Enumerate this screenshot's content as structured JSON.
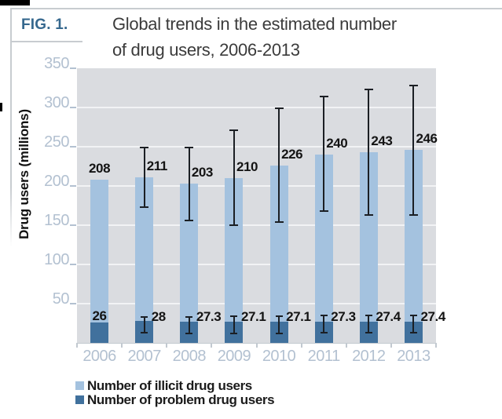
{
  "figure": {
    "label": "FIG. 1.",
    "title_line1": "Global trends in the estimated number",
    "title_line2": "of drug users, 2006-2013"
  },
  "chart_data": {
    "type": "bar",
    "title": "Global trends in the estimated number of drug users, 2006-2013",
    "xlabel": "",
    "ylabel": "Drug users (millions)",
    "ylim": [
      0,
      350
    ],
    "ytick_interval": 50,
    "grid": true,
    "legend_position": "bottom",
    "categories": [
      "2006",
      "2007",
      "2008",
      "2009",
      "2010",
      "2011",
      "2012",
      "2013"
    ],
    "series": [
      {
        "name": "Number of illicit drug users",
        "color": "#a4c2df",
        "values": [
          208,
          211,
          203,
          210,
          226,
          240,
          243,
          246
        ],
        "labels": [
          "208",
          "211",
          "203",
          "210",
          "226",
          "240",
          "243",
          "246"
        ],
        "error_low": [
          null,
          172,
          155,
          149,
          153,
          167,
          162,
          162
        ],
        "error_high": [
          null,
          250,
          250,
          272,
          300,
          315,
          324,
          329
        ]
      },
      {
        "name": "Number of problem drug users",
        "color": "#41719d",
        "values": [
          26,
          28,
          27.3,
          27.1,
          27.1,
          27.3,
          27.4,
          27.4
        ],
        "labels": [
          "26",
          "28",
          "27.3",
          "27.1",
          "27.1",
          "27.3",
          "27.4",
          "27.4"
        ],
        "error_low": [
          null,
          12,
          11,
          11,
          11,
          12,
          12,
          12
        ],
        "error_high": [
          null,
          34,
          34,
          35,
          35,
          36,
          36,
          36
        ]
      }
    ]
  },
  "legend": [
    {
      "label": "Number of illicit drug users",
      "color": "#a4c2df"
    },
    {
      "label": "Number of problem drug users",
      "color": "#41719d"
    }
  ],
  "colors": {
    "fig_label": "#36688e",
    "title_text": "#3b3b3b",
    "plot_bg": "#dadce0",
    "gridline": "#f2f3f5",
    "axis_text": "#b3c1d1",
    "tick": "#c2c9d0",
    "error_bar": "#1b1f24",
    "value_label": "#141414",
    "legend_text": "#1b1b1b",
    "border": "#c8ccd0",
    "artifact": "#000000"
  }
}
